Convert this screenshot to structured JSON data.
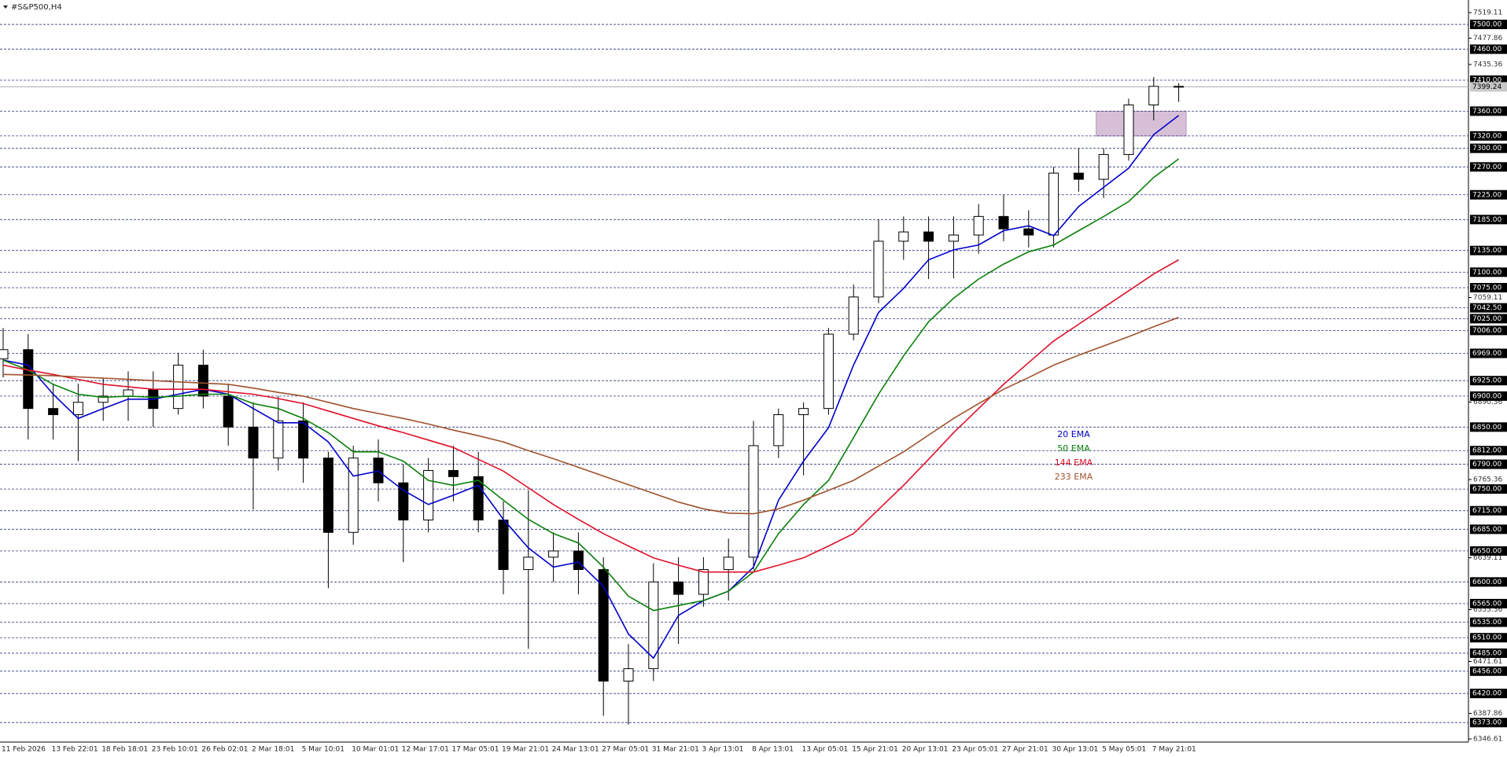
{
  "chart_data": {
    "type": "candlestick",
    "title": "#S&P500,H4",
    "categories": [
      "11 Feb 2026",
      null,
      "13 Feb 22:01",
      null,
      "18 Feb 18:01",
      null,
      "23 Feb 10:01",
      null,
      "26 Feb 02:01",
      null,
      "2 Mar 18:01",
      null,
      "5 Mar 10:01",
      null,
      "10 Mar 01:01",
      null,
      "12 Mar 17:01",
      null,
      "17 Mar 05:01",
      null,
      "19 Mar 21:01",
      null,
      "24 Mar 13:01",
      null,
      "27 Mar 05:01",
      null,
      "31 Mar 21:01",
      null,
      "3 Apr 13:01",
      null,
      "8 Apr 13:01",
      null,
      "13 Apr 05:01",
      null,
      "15 Apr 21:01",
      null,
      "20 Apr 13:01",
      null,
      "23 Apr 05:01",
      null,
      "27 Apr 21:01",
      null,
      "30 Apr 13:01",
      null,
      "5 May 05:01",
      null,
      "7 May 21:01",
      null
    ],
    "open": [
      6960,
      6975,
      6880,
      6870,
      6890,
      6900,
      6910,
      6880,
      6950,
      6900,
      6850,
      6800,
      6860,
      6800,
      6680,
      6800,
      6760,
      6700,
      6780,
      6770,
      6700,
      6620,
      6640,
      6650,
      6620,
      6440,
      6460,
      6600,
      6580,
      6620,
      6640,
      6820,
      6870,
      6880,
      7000,
      7060,
      7150,
      7165,
      7150,
      7160,
      7190,
      7170,
      7160,
      7260,
      7250,
      7290,
      7370,
      7400
    ],
    "high": [
      7010,
      7000,
      6920,
      6920,
      6930,
      6940,
      6940,
      6970,
      6975,
      6920,
      6890,
      6900,
      6890,
      6810,
      6820,
      6830,
      6790,
      6800,
      6820,
      6810,
      6730,
      6748,
      6680,
      6680,
      6640,
      6500,
      6630,
      6640,
      6640,
      6670,
      6860,
      6880,
      6890,
      7010,
      7080,
      7185,
      7190,
      7190,
      7190,
      7210,
      7225,
      7200,
      7270,
      7300,
      7300,
      7380,
      7415,
      7405
    ],
    "low": [
      6930,
      6830,
      6830,
      6795,
      6860,
      6860,
      6850,
      6870,
      6880,
      6820,
      6717,
      6780,
      6760,
      6590,
      6660,
      6730,
      6632,
      6680,
      6730,
      6680,
      6580,
      6492,
      6600,
      6580,
      6384,
      6370,
      6440,
      6500,
      6560,
      6570,
      6620,
      6800,
      6772,
      6870,
      6990,
      7050,
      7120,
      7089,
      7090,
      7130,
      7150,
      7140,
      7140,
      7230,
      7220,
      7280,
      7345,
      7375
    ],
    "close": [
      6975,
      6880,
      6870,
      6890,
      6900,
      6910,
      6880,
      6950,
      6900,
      6850,
      6800,
      6860,
      6800,
      6680,
      6800,
      6760,
      6700,
      6780,
      6770,
      6700,
      6620,
      6640,
      6650,
      6620,
      6440,
      6460,
      6600,
      6580,
      6620,
      6640,
      6820,
      6870,
      6880,
      7000,
      7060,
      7150,
      7165,
      7150,
      7160,
      7190,
      7170,
      7160,
      7260,
      7250,
      7290,
      7370,
      7400,
      7399
    ],
    "series": [
      {
        "name": "20 EMA",
        "color": "#0000cd",
        "values": [
          6958,
          6950,
          6903,
          6864,
          6880,
          6895,
          6895,
          6903,
          6911,
          6903,
          6880,
          6857,
          6857,
          6826,
          6771,
          6779,
          6748,
          6725,
          6740,
          6756,
          6701,
          6655,
          6624,
          6632,
          6593,
          6516,
          6477,
          6546,
          6570,
          6585,
          6624,
          6732,
          6795,
          6849,
          6950,
          7035,
          7074,
          7120,
          7136,
          7144,
          7167,
          7175,
          7159,
          7206,
          7237,
          7268,
          7322,
          7353
        ]
      },
      {
        "name": "50 EMA",
        "color": "#0a800a",
        "values": [
          6958,
          6942,
          6919,
          6903,
          6898,
          6900,
          6898,
          6900,
          6903,
          6903,
          6888,
          6880,
          6864,
          6841,
          6810,
          6810,
          6795,
          6764,
          6756,
          6764,
          6732,
          6701,
          6678,
          6663,
          6624,
          6577,
          6554,
          6562,
          6570,
          6585,
          6616,
          6678,
          6725,
          6764,
          6833,
          6903,
          6965,
          7020,
          7058,
          7089,
          7113,
          7133,
          7144,
          7167,
          7190,
          7214,
          7253,
          7283
        ]
      },
      {
        "name": "144 EMA",
        "color": "#e0102a",
        "values": [
          6950,
          6942,
          6935,
          6927,
          6919,
          6915,
          6911,
          6911,
          6911,
          6907,
          6903,
          6896,
          6888,
          6876,
          6864,
          6852,
          6841,
          6829,
          6817,
          6798,
          6779,
          6752,
          6725,
          6701,
          6678,
          6658,
          6639,
          6627,
          6616,
          6616,
          6616,
          6627,
          6639,
          6658,
          6678,
          6717,
          6756,
          6798,
          6841,
          6880,
          6919,
          6954,
          6989,
          7016,
          7043,
          7070,
          7097,
          7120
        ]
      },
      {
        "name": "233 EMA",
        "color": "#a0522d",
        "values": [
          6935,
          6934,
          6933,
          6931,
          6929,
          6927,
          6925,
          6923,
          6921,
          6919,
          6913,
          6906,
          6900,
          6890,
          6880,
          6872,
          6864,
          6855,
          6845,
          6836,
          6826,
          6812,
          6799,
          6785,
          6771,
          6757,
          6743,
          6729,
          6718,
          6711,
          6710,
          6718,
          6732,
          6748,
          6764,
          6787,
          6810,
          6837,
          6864,
          6888,
          6911,
          6930,
          6950,
          6966,
          6981,
          6996,
          7012,
          7027
        ]
      }
    ],
    "ylim": [
      6346.61,
      7519.11
    ],
    "yticks": [
      7519.11,
      7477.86,
      7435.36,
      7059.11,
      6890.36,
      6765.36,
      6639.11,
      6555.36,
      6471.61,
      6387.86,
      6346.61
    ],
    "levels": [
      {
        "value": 7500,
        "label": "7500.00"
      },
      {
        "value": 7460,
        "label": "7460.00"
      },
      {
        "value": 7410,
        "label": "7410.00"
      },
      {
        "value": 7360,
        "label": "7360.00"
      },
      {
        "value": 7320,
        "label": "7320.00"
      },
      {
        "value": 7300,
        "label": "7300.00"
      },
      {
        "value": 7270,
        "label": "7270.00"
      },
      {
        "value": 7225,
        "label": "7225.00"
      },
      {
        "value": 7185,
        "label": "7185.00"
      },
      {
        "value": 7135,
        "label": "7135.00"
      },
      {
        "value": 7100,
        "label": "7100.00"
      },
      {
        "value": 7075,
        "label": "7075.00"
      },
      {
        "value": 7042.5,
        "label": "7042.50"
      },
      {
        "value": 7025,
        "label": "7025.00"
      },
      {
        "value": 7006,
        "label": "7006.00"
      },
      {
        "value": 6969,
        "label": "6969.00"
      },
      {
        "value": 6925,
        "label": "6925.00"
      },
      {
        "value": 6900,
        "label": "6900.00"
      },
      {
        "value": 6850,
        "label": "6850.00"
      },
      {
        "value": 6812,
        "label": "6812.00"
      },
      {
        "value": 6790,
        "label": "6790.00"
      },
      {
        "value": 6750,
        "label": "6750.00"
      },
      {
        "value": 6715,
        "label": "6715.00"
      },
      {
        "value": 6685,
        "label": "6685.00"
      },
      {
        "value": 6650,
        "label": "6650.00"
      },
      {
        "value": 6600,
        "label": "6600.00"
      },
      {
        "value": 6565,
        "label": "6565.00"
      },
      {
        "value": 6535,
        "label": "6535.00"
      },
      {
        "value": 6510,
        "label": "6510.00"
      },
      {
        "value": 6485,
        "label": "6485.00"
      },
      {
        "value": 6456,
        "label": "6456.00"
      },
      {
        "value": 6420,
        "label": "6420.00"
      },
      {
        "value": 6373,
        "label": "6373.00"
      }
    ],
    "current_price": 7399.24,
    "zone": {
      "from": 7320,
      "to": 7360,
      "start": 43.7,
      "end": 47.3,
      "color": "#d8bfd8"
    },
    "grid": false
  }
}
